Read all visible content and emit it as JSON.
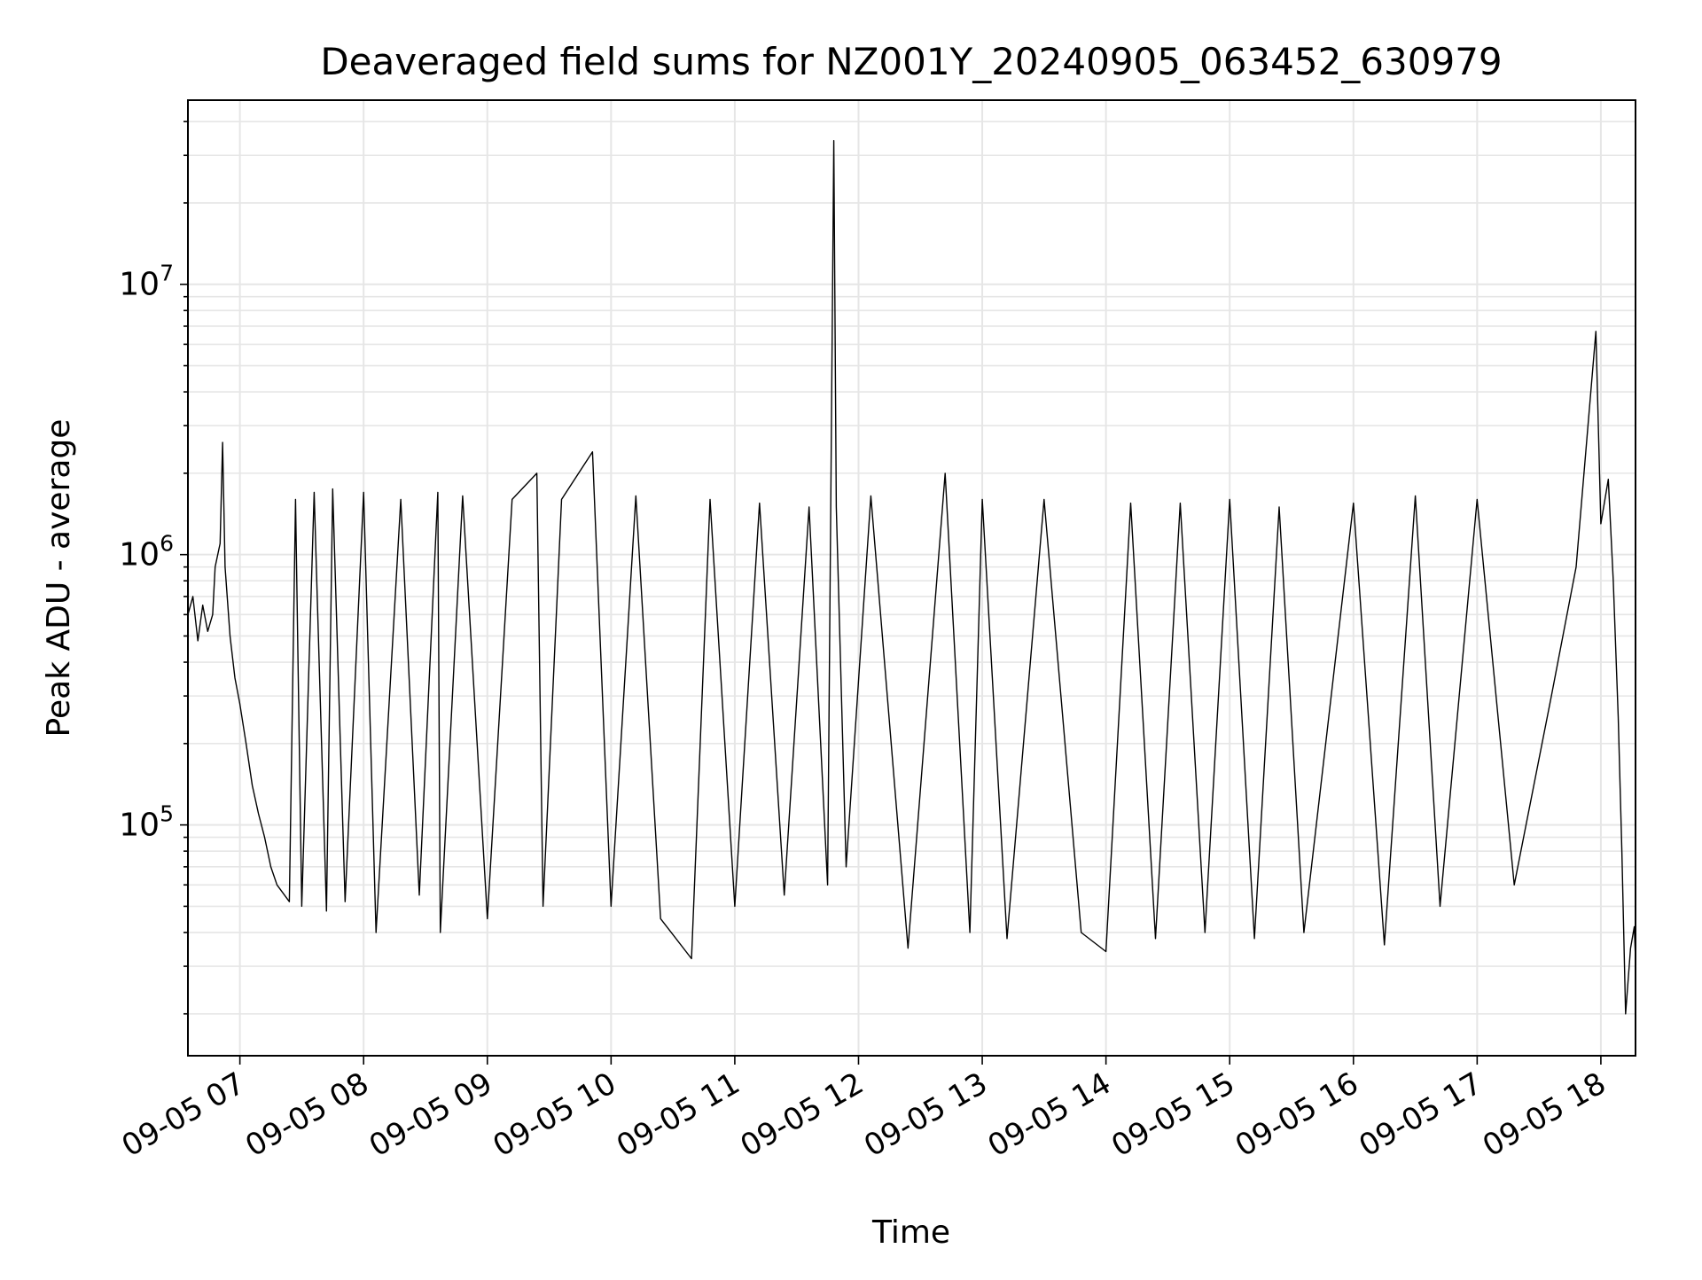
{
  "chart_data": {
    "type": "line",
    "title": "Deaveraged field sums for NZ001Y_20240905_063452_630979",
    "xlabel": "Time",
    "ylabel": "Peak ADU - average",
    "x_unit": "hours on 2024-09-05",
    "xlim": [
      6.58,
      18.28
    ],
    "ylim": [
      14000,
      48000000
    ],
    "yscale": "log",
    "grid": true,
    "grid_color": "#e6e6e6",
    "line_color": "#000000",
    "legend": "none",
    "x_ticks": [
      {
        "value": 7,
        "label": "09-05 07"
      },
      {
        "value": 8,
        "label": "09-05 08"
      },
      {
        "value": 9,
        "label": "09-05 09"
      },
      {
        "value": 10,
        "label": "09-05 10"
      },
      {
        "value": 11,
        "label": "09-05 11"
      },
      {
        "value": 12,
        "label": "09-05 12"
      },
      {
        "value": 13,
        "label": "09-05 13"
      },
      {
        "value": 14,
        "label": "09-05 14"
      },
      {
        "value": 15,
        "label": "09-05 15"
      },
      {
        "value": 16,
        "label": "09-05 16"
      },
      {
        "value": 17,
        "label": "09-05 17"
      },
      {
        "value": 18,
        "label": "09-05 18"
      }
    ],
    "y_ticks": [
      {
        "value": 100000,
        "base": "10",
        "exp": "5"
      },
      {
        "value": 1000000,
        "base": "10",
        "exp": "6"
      },
      {
        "value": 10000000,
        "base": "10",
        "exp": "7"
      }
    ],
    "series": [
      {
        "values": [
          [
            6.58,
            600000
          ],
          [
            6.62,
            700000
          ],
          [
            6.66,
            480000
          ],
          [
            6.7,
            650000
          ],
          [
            6.74,
            520000
          ],
          [
            6.78,
            600000
          ],
          [
            6.8,
            900000
          ],
          [
            6.84,
            1100000
          ],
          [
            6.86,
            2600000
          ],
          [
            6.88,
            900000
          ],
          [
            6.92,
            500000
          ],
          [
            6.96,
            350000
          ],
          [
            7.0,
            280000
          ],
          [
            7.05,
            200000
          ],
          [
            7.1,
            140000
          ],
          [
            7.15,
            110000
          ],
          [
            7.2,
            90000
          ],
          [
            7.25,
            70000
          ],
          [
            7.3,
            60000
          ],
          [
            7.4,
            52000
          ],
          [
            7.45,
            1600000
          ],
          [
            7.5,
            50000
          ],
          [
            7.6,
            1700000
          ],
          [
            7.7,
            48000
          ],
          [
            7.75,
            1750000
          ],
          [
            7.85,
            52000
          ],
          [
            8.0,
            1700000
          ],
          [
            8.1,
            40000
          ],
          [
            8.3,
            1600000
          ],
          [
            8.45,
            55000
          ],
          [
            8.6,
            1700000
          ],
          [
            8.62,
            40000
          ],
          [
            8.8,
            1650000
          ],
          [
            9.0,
            45000
          ],
          [
            9.2,
            1600000
          ],
          [
            9.4,
            2000000
          ],
          [
            9.45,
            50000
          ],
          [
            9.6,
            1600000
          ],
          [
            9.85,
            2400000
          ],
          [
            10.0,
            50000
          ],
          [
            10.2,
            1650000
          ],
          [
            10.4,
            45000
          ],
          [
            10.65,
            32000
          ],
          [
            10.8,
            1600000
          ],
          [
            11.0,
            50000
          ],
          [
            11.2,
            1550000
          ],
          [
            11.4,
            55000
          ],
          [
            11.6,
            1500000
          ],
          [
            11.75,
            60000
          ],
          [
            11.8,
            34000000
          ],
          [
            11.82,
            1500000
          ],
          [
            11.9,
            70000
          ],
          [
            12.1,
            1650000
          ],
          [
            12.4,
            35000
          ],
          [
            12.7,
            2000000
          ],
          [
            12.9,
            40000
          ],
          [
            13.0,
            1600000
          ],
          [
            13.2,
            38000
          ],
          [
            13.5,
            1600000
          ],
          [
            13.8,
            40000
          ],
          [
            14.0,
            34000
          ],
          [
            14.2,
            1550000
          ],
          [
            14.4,
            38000
          ],
          [
            14.6,
            1550000
          ],
          [
            14.8,
            40000
          ],
          [
            15.0,
            1600000
          ],
          [
            15.2,
            38000
          ],
          [
            15.4,
            1500000
          ],
          [
            15.6,
            40000
          ],
          [
            16.0,
            1550000
          ],
          [
            16.25,
            36000
          ],
          [
            16.5,
            1650000
          ],
          [
            16.7,
            50000
          ],
          [
            17.0,
            1600000
          ],
          [
            17.3,
            60000
          ],
          [
            17.6,
            300000
          ],
          [
            17.8,
            900000
          ],
          [
            17.96,
            6700000
          ],
          [
            18.0,
            1300000
          ],
          [
            18.06,
            1900000
          ],
          [
            18.1,
            800000
          ],
          [
            18.14,
            250000
          ],
          [
            18.17,
            80000
          ],
          [
            18.2,
            20000
          ],
          [
            18.24,
            35000
          ],
          [
            18.27,
            42000
          ],
          [
            18.28,
            32000
          ]
        ]
      }
    ]
  }
}
